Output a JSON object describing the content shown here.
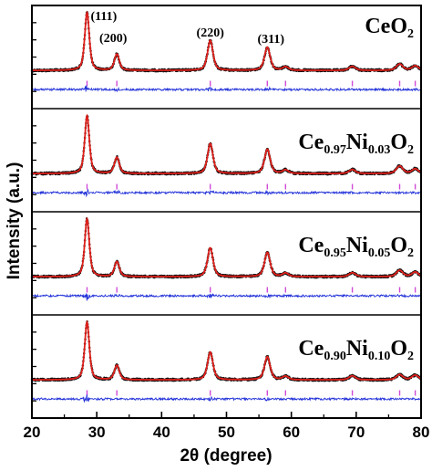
{
  "chart_data": {
    "type": "line",
    "xlabel": "2θ (degree)",
    "ylabel": "Intensity (a.u.)",
    "xlim": [
      20,
      80
    ],
    "xticks": [
      "20",
      "30",
      "40",
      "50",
      "60",
      "70",
      "80"
    ],
    "grid": false,
    "legend": "none",
    "reflections": [
      {
        "label": "(111)",
        "x": 28.5
      },
      {
        "label": "(200)",
        "x": 33.1
      },
      {
        "label": "(220)",
        "x": 47.5
      },
      {
        "label": "(311)",
        "x": 56.3
      }
    ],
    "tick_marks": [
      28.5,
      33.1,
      47.5,
      56.3,
      59.1,
      69.4,
      76.7,
      79.1
    ],
    "peaks": [
      {
        "x": 28.5,
        "w": 0.42
      },
      {
        "x": 33.1,
        "w": 0.45
      },
      {
        "x": 47.5,
        "w": 0.5
      },
      {
        "x": 56.3,
        "w": 0.52
      },
      {
        "x": 59.1,
        "w": 0.55
      },
      {
        "x": 69.4,
        "w": 0.6
      },
      {
        "x": 76.7,
        "w": 0.6
      },
      {
        "x": 79.1,
        "w": 0.6
      }
    ],
    "panels": [
      {
        "formula": {
          "a": "CeO",
          "b": "2",
          "c": "",
          "d": "",
          "e": "",
          "f": ""
        },
        "peak_intensities": [
          1.0,
          0.28,
          0.52,
          0.4,
          0.06,
          0.07,
          0.11,
          0.08
        ]
      },
      {
        "formula": {
          "a": "Ce",
          "b": "0.97",
          "c": "Ni",
          "d": "0.03",
          "e": "O",
          "f": "2"
        },
        "peak_intensities": [
          1.0,
          0.28,
          0.52,
          0.42,
          0.06,
          0.07,
          0.13,
          0.08
        ]
      },
      {
        "formula": {
          "a": "Ce",
          "b": "0.95",
          "c": "Ni",
          "d": "0.05",
          "e": "O",
          "f": "2"
        },
        "peak_intensities": [
          1.0,
          0.26,
          0.5,
          0.42,
          0.06,
          0.07,
          0.11,
          0.08
        ]
      },
      {
        "formula": {
          "a": "Ce",
          "b": "0.90",
          "c": "Ni",
          "d": "0.10",
          "e": "O",
          "f": "2"
        },
        "peak_intensities": [
          1.0,
          0.25,
          0.48,
          0.4,
          0.06,
          0.07,
          0.09,
          0.08
        ]
      }
    ],
    "colors": {
      "observed": "#111111",
      "calculated": "#e0201b",
      "difference": "#1f2fd8",
      "bragg_ticks": "#d04ad8",
      "frame": "#000000"
    }
  }
}
